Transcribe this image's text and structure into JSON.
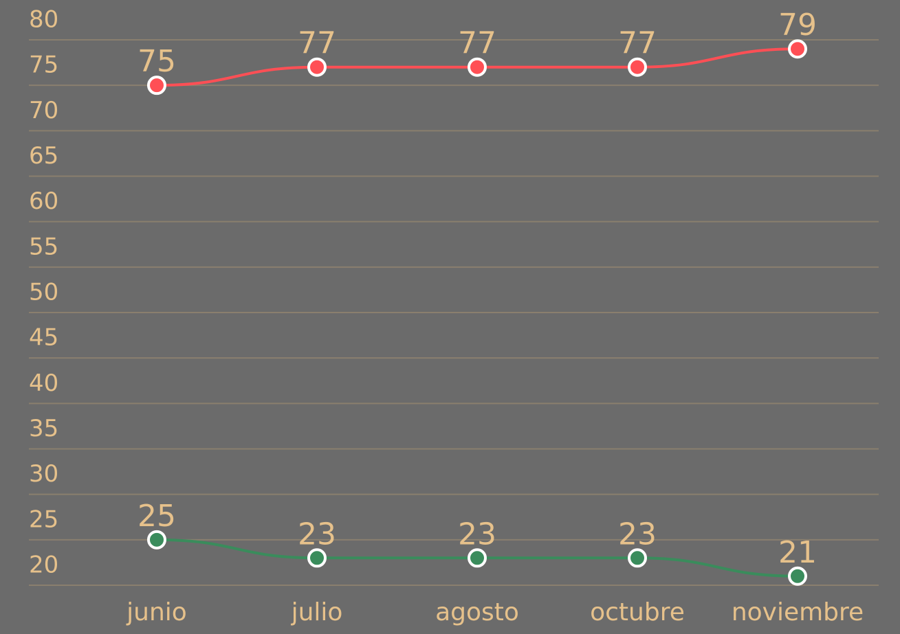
{
  "chart_data": {
    "type": "line",
    "categories": [
      "junio",
      "julio",
      "agosto",
      "octubre",
      "noviembre"
    ],
    "series": [
      {
        "color": "#ff4f55",
        "values": [
          75,
          77,
          77,
          77,
          79
        ]
      },
      {
        "color": "#3a8c5c",
        "values": [
          25,
          23,
          23,
          23,
          21
        ]
      }
    ],
    "ylim": [
      20,
      80
    ],
    "yticks": [
      20,
      25,
      30,
      35,
      40,
      45,
      50,
      55,
      60,
      65,
      70,
      75,
      80
    ],
    "grid": true
  }
}
